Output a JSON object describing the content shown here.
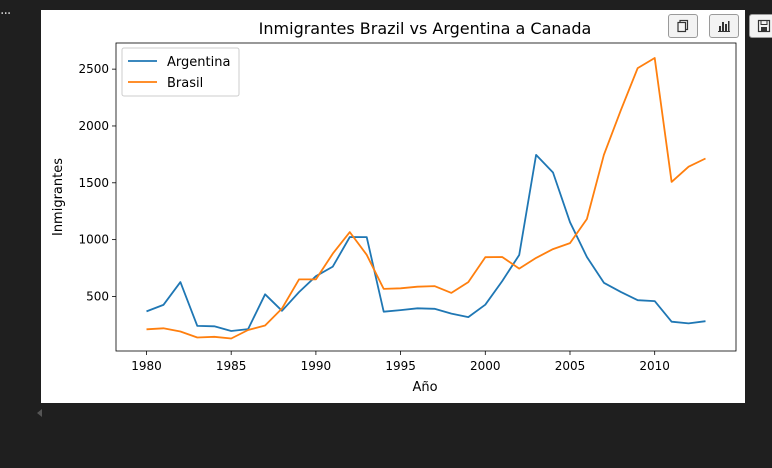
{
  "toolbar": {
    "buttons": [
      {
        "icon": "copy-icon"
      },
      {
        "icon": "bar-chart-icon"
      },
      {
        "icon": "save-icon"
      }
    ]
  },
  "chart_data": {
    "type": "line",
    "title": "Inmigrantes Brazil vs Argentina a Canada",
    "xlabel": "Año",
    "ylabel": "Inmigrantes",
    "xlim": [
      1978.2,
      2014.8
    ],
    "ylim": [
      20,
      2730
    ],
    "xticks": [
      1980,
      1985,
      1990,
      1995,
      2000,
      2005,
      2010
    ],
    "yticks": [
      500,
      1000,
      1500,
      2000,
      2500
    ],
    "legend_position": "top-left",
    "grid": false,
    "x": [
      1980,
      1981,
      1982,
      1983,
      1984,
      1985,
      1986,
      1987,
      1988,
      1989,
      1990,
      1991,
      1992,
      1993,
      1994,
      1995,
      1996,
      1997,
      1998,
      1999,
      2000,
      2001,
      2002,
      2003,
      2004,
      2005,
      2006,
      2007,
      2008,
      2009,
      2010,
      2011,
      2012,
      2013
    ],
    "series": [
      {
        "name": "Argentina",
        "color": "#1f77b4",
        "values": [
          368,
          426,
          626,
          241,
          237,
          196,
          213,
          519,
          374,
          538,
          678,
          763,
          1023,
          1022,
          366,
          380,
          396,
          391,
          349,
          318,
          427,
          635,
          865,
          1745,
          1591,
          1153,
          847,
          620,
          540,
          467,
          459,
          278,
          263,
          282
        ]
      },
      {
        "name": "Brasil",
        "color": "#ff7f0e",
        "values": [
          211,
          220,
          192,
          139,
          145,
          130,
          205,
          244,
          394,
          650,
          650,
          877,
          1066,
          866,
          566,
          572,
          586,
          591,
          531,
          626,
          845,
          847,
          745,
          839,
          917,
          969,
          1181,
          1746,
          2138,
          2509,
          2598,
          1508,
          1642,
          1714
        ]
      }
    ]
  }
}
